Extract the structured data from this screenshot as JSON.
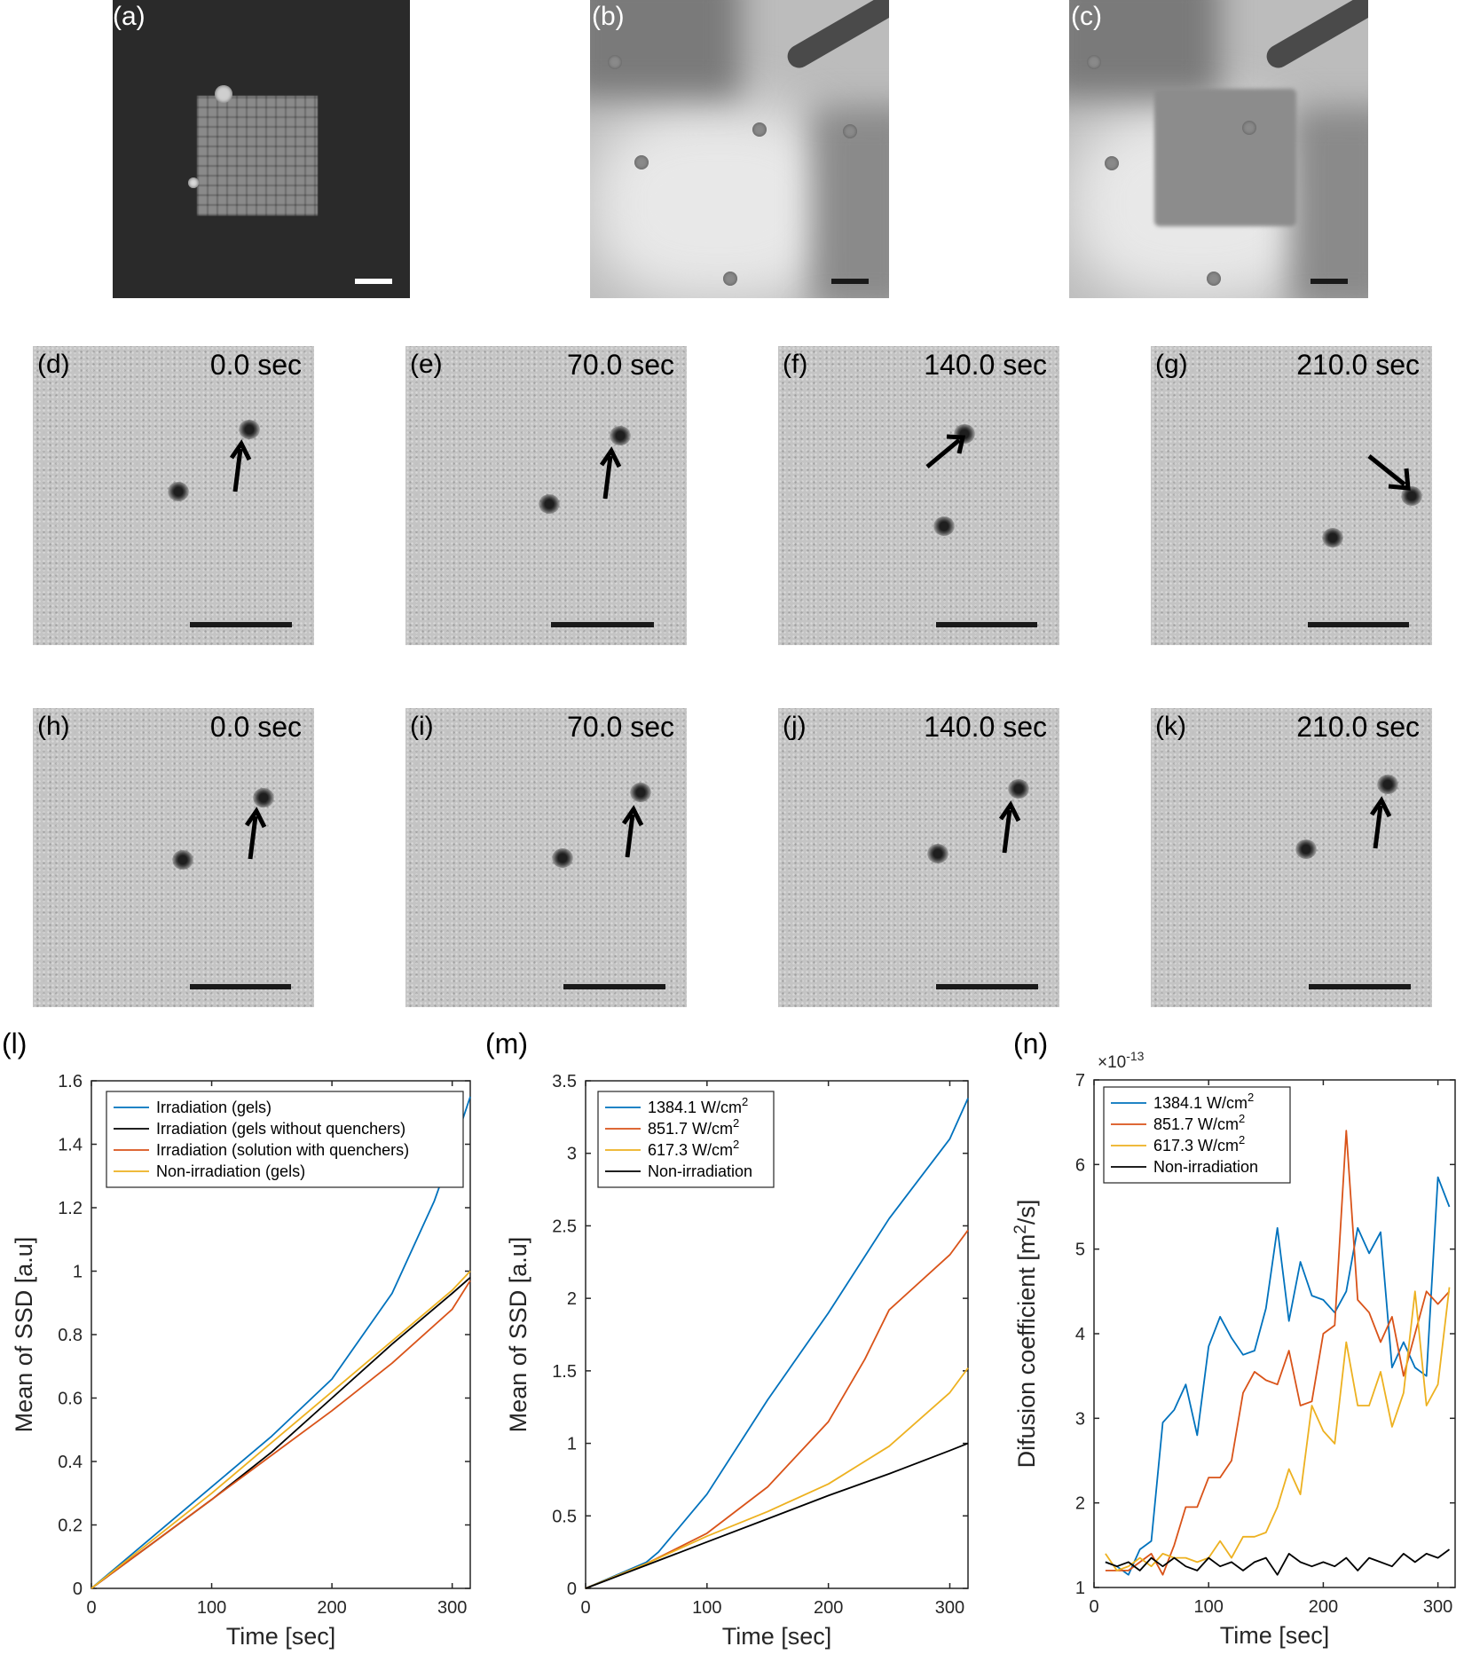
{
  "labels": {
    "a": "(a)",
    "b": "(b)",
    "c": "(c)",
    "d": "(d)",
    "e": "(e)",
    "f": "(f)",
    "g": "(g)",
    "h": "(h)",
    "i": "(i)",
    "j": "(j)",
    "k": "(k)",
    "l": "(l)",
    "m": "(m)",
    "n": "(n)"
  },
  "times": {
    "d": "0.0 sec",
    "e": "70.0 sec",
    "f": "140.0 sec",
    "g": "210.0 sec",
    "h": "0.0 sec",
    "i": "70.0 sec",
    "j": "140.0 sec",
    "k": "210.0 sec"
  },
  "chart_data": [
    {
      "panel": "l",
      "type": "line",
      "xlabel": "Time [sec]",
      "ylabel": "Mean of SSD [a.u]",
      "xlim": [
        0,
        315
      ],
      "ylim": [
        0,
        1.6
      ],
      "xticks": [
        0,
        100,
        200,
        300
      ],
      "yticks": [
        0,
        0.2,
        0.4,
        0.6,
        0.8,
        1,
        1.2,
        1.4,
        1.6
      ],
      "ytick_labels": [
        "0",
        "0.2",
        "0.4",
        "0.6",
        "0.8",
        "1",
        "1.2",
        "1.4",
        "1.6"
      ],
      "legend_position": "top-right",
      "series": [
        {
          "name": "Irradiation (gels)",
          "color": "#0072BD",
          "x": [
            0,
            50,
            100,
            150,
            200,
            250,
            285,
            300,
            315
          ],
          "y": [
            0,
            0.16,
            0.32,
            0.48,
            0.66,
            0.93,
            1.22,
            1.38,
            1.55
          ]
        },
        {
          "name": "Irradiation (gels without quenchers)",
          "color": "#000000",
          "x": [
            0,
            50,
            100,
            150,
            200,
            250,
            300,
            315
          ],
          "y": [
            0,
            0.14,
            0.28,
            0.43,
            0.6,
            0.77,
            0.93,
            0.98
          ]
        },
        {
          "name": "Irradiation (solution with quenchers)",
          "color": "#D95319",
          "x": [
            0,
            50,
            100,
            150,
            200,
            250,
            300,
            315
          ],
          "y": [
            0,
            0.14,
            0.28,
            0.42,
            0.56,
            0.71,
            0.88,
            0.97
          ]
        },
        {
          "name": "Non-irradiation (gels)",
          "color": "#EDB120",
          "x": [
            0,
            50,
            100,
            150,
            200,
            250,
            300,
            315
          ],
          "y": [
            0,
            0.15,
            0.3,
            0.46,
            0.62,
            0.78,
            0.94,
            1.0
          ]
        }
      ]
    },
    {
      "panel": "m",
      "type": "line",
      "xlabel": "Time [sec]",
      "ylabel": "Mean of SSD [a.u]",
      "xlim": [
        0,
        315
      ],
      "ylim": [
        0,
        3.5
      ],
      "xticks": [
        0,
        100,
        200,
        300
      ],
      "yticks": [
        0,
        0.5,
        1,
        1.5,
        2,
        2.5,
        3,
        3.5
      ],
      "ytick_labels": [
        "0",
        "0.5",
        "1",
        "1.5",
        "2",
        "2.5",
        "3",
        "3.5"
      ],
      "legend_position": "top-left",
      "series": [
        {
          "name": "1384.1 W/cm",
          "sup": "2",
          "color": "#0072BD",
          "x": [
            0,
            50,
            60,
            100,
            150,
            200,
            250,
            300,
            315
          ],
          "y": [
            0,
            0.18,
            0.25,
            0.65,
            1.3,
            1.9,
            2.55,
            3.1,
            3.38
          ]
        },
        {
          "name": "851.7 W/cm",
          "sup": "2",
          "color": "#D95319",
          "x": [
            0,
            50,
            100,
            150,
            200,
            230,
            240,
            250,
            300,
            315
          ],
          "y": [
            0,
            0.17,
            0.38,
            0.7,
            1.15,
            1.58,
            1.75,
            1.92,
            2.3,
            2.47
          ]
        },
        {
          "name": "617.3 W/cm",
          "sup": "2",
          "color": "#EDB120",
          "x": [
            0,
            50,
            100,
            150,
            200,
            250,
            300,
            315
          ],
          "y": [
            0,
            0.17,
            0.36,
            0.53,
            0.72,
            0.98,
            1.35,
            1.52
          ]
        },
        {
          "name": "Non-irradiation",
          "color": "#000000",
          "x": [
            0,
            50,
            100,
            150,
            200,
            250,
            300,
            315
          ],
          "y": [
            0,
            0.16,
            0.32,
            0.48,
            0.64,
            0.79,
            0.95,
            1.0
          ]
        }
      ]
    },
    {
      "panel": "n",
      "type": "line",
      "xlabel": "Time [sec]",
      "ylabel": "Difusion coefficient [m",
      "ylabel_sup": "2",
      "ylabel_tail": "/s]",
      "exponent_base": "×10",
      "exponent_power": "-13",
      "xlim": [
        0,
        315
      ],
      "ylim": [
        1,
        7
      ],
      "xticks": [
        0,
        100,
        200,
        300
      ],
      "yticks": [
        1,
        2,
        3,
        4,
        5,
        6,
        7
      ],
      "ytick_labels": [
        "1",
        "2",
        "3",
        "4",
        "5",
        "6",
        "7"
      ],
      "legend_position": "top-left",
      "series": [
        {
          "name": "1384.1 W/cm",
          "sup": "2",
          "color": "#0072BD",
          "x": [
            10,
            20,
            30,
            40,
            50,
            60,
            70,
            80,
            90,
            100,
            110,
            120,
            130,
            140,
            150,
            160,
            170,
            180,
            190,
            200,
            210,
            220,
            230,
            240,
            250,
            260,
            270,
            280,
            290,
            300,
            310
          ],
          "y": [
            1.3,
            1.25,
            1.15,
            1.45,
            1.55,
            2.95,
            3.1,
            3.4,
            2.8,
            3.85,
            4.2,
            3.95,
            3.75,
            3.8,
            4.3,
            5.25,
            4.15,
            4.85,
            4.45,
            4.4,
            4.25,
            4.5,
            5.25,
            4.95,
            5.2,
            3.6,
            3.9,
            3.6,
            3.5,
            5.85,
            5.5
          ]
        },
        {
          "name": "851.7 W/cm",
          "sup": "2",
          "color": "#D95319",
          "x": [
            10,
            20,
            30,
            40,
            50,
            60,
            70,
            80,
            90,
            100,
            110,
            120,
            130,
            140,
            150,
            160,
            170,
            180,
            190,
            200,
            210,
            220,
            230,
            240,
            250,
            260,
            270,
            280,
            290,
            300,
            310
          ],
          "y": [
            1.2,
            1.2,
            1.2,
            1.3,
            1.4,
            1.15,
            1.5,
            1.95,
            1.95,
            2.3,
            2.3,
            2.5,
            3.3,
            3.55,
            3.45,
            3.4,
            3.8,
            3.15,
            3.2,
            4.0,
            4.1,
            6.4,
            4.4,
            4.25,
            3.9,
            4.2,
            3.5,
            4.0,
            4.5,
            4.35,
            4.5
          ]
        },
        {
          "name": "617.3 W/cm",
          "sup": "2",
          "color": "#EDB120",
          "x": [
            10,
            20,
            30,
            40,
            50,
            60,
            70,
            80,
            90,
            100,
            110,
            120,
            130,
            140,
            150,
            160,
            170,
            180,
            190,
            200,
            210,
            220,
            230,
            240,
            250,
            260,
            270,
            280,
            290,
            300,
            310
          ],
          "y": [
            1.4,
            1.2,
            1.25,
            1.35,
            1.25,
            1.4,
            1.35,
            1.35,
            1.3,
            1.35,
            1.55,
            1.35,
            1.6,
            1.6,
            1.65,
            1.95,
            2.4,
            2.1,
            3.15,
            2.85,
            2.7,
            3.9,
            3.15,
            3.15,
            3.55,
            2.9,
            3.3,
            4.5,
            3.15,
            3.4,
            4.55
          ]
        },
        {
          "name": "Non-irradiation",
          "color": "#000000",
          "x": [
            10,
            20,
            30,
            40,
            50,
            60,
            70,
            80,
            90,
            100,
            110,
            120,
            130,
            140,
            150,
            160,
            170,
            180,
            190,
            200,
            210,
            220,
            230,
            240,
            250,
            260,
            270,
            280,
            290,
            300,
            310
          ],
          "y": [
            1.3,
            1.25,
            1.3,
            1.2,
            1.35,
            1.25,
            1.35,
            1.25,
            1.2,
            1.35,
            1.25,
            1.3,
            1.2,
            1.3,
            1.35,
            1.15,
            1.4,
            1.3,
            1.25,
            1.3,
            1.25,
            1.35,
            1.2,
            1.35,
            1.3,
            1.25,
            1.4,
            1.3,
            1.4,
            1.35,
            1.45
          ]
        }
      ]
    }
  ]
}
